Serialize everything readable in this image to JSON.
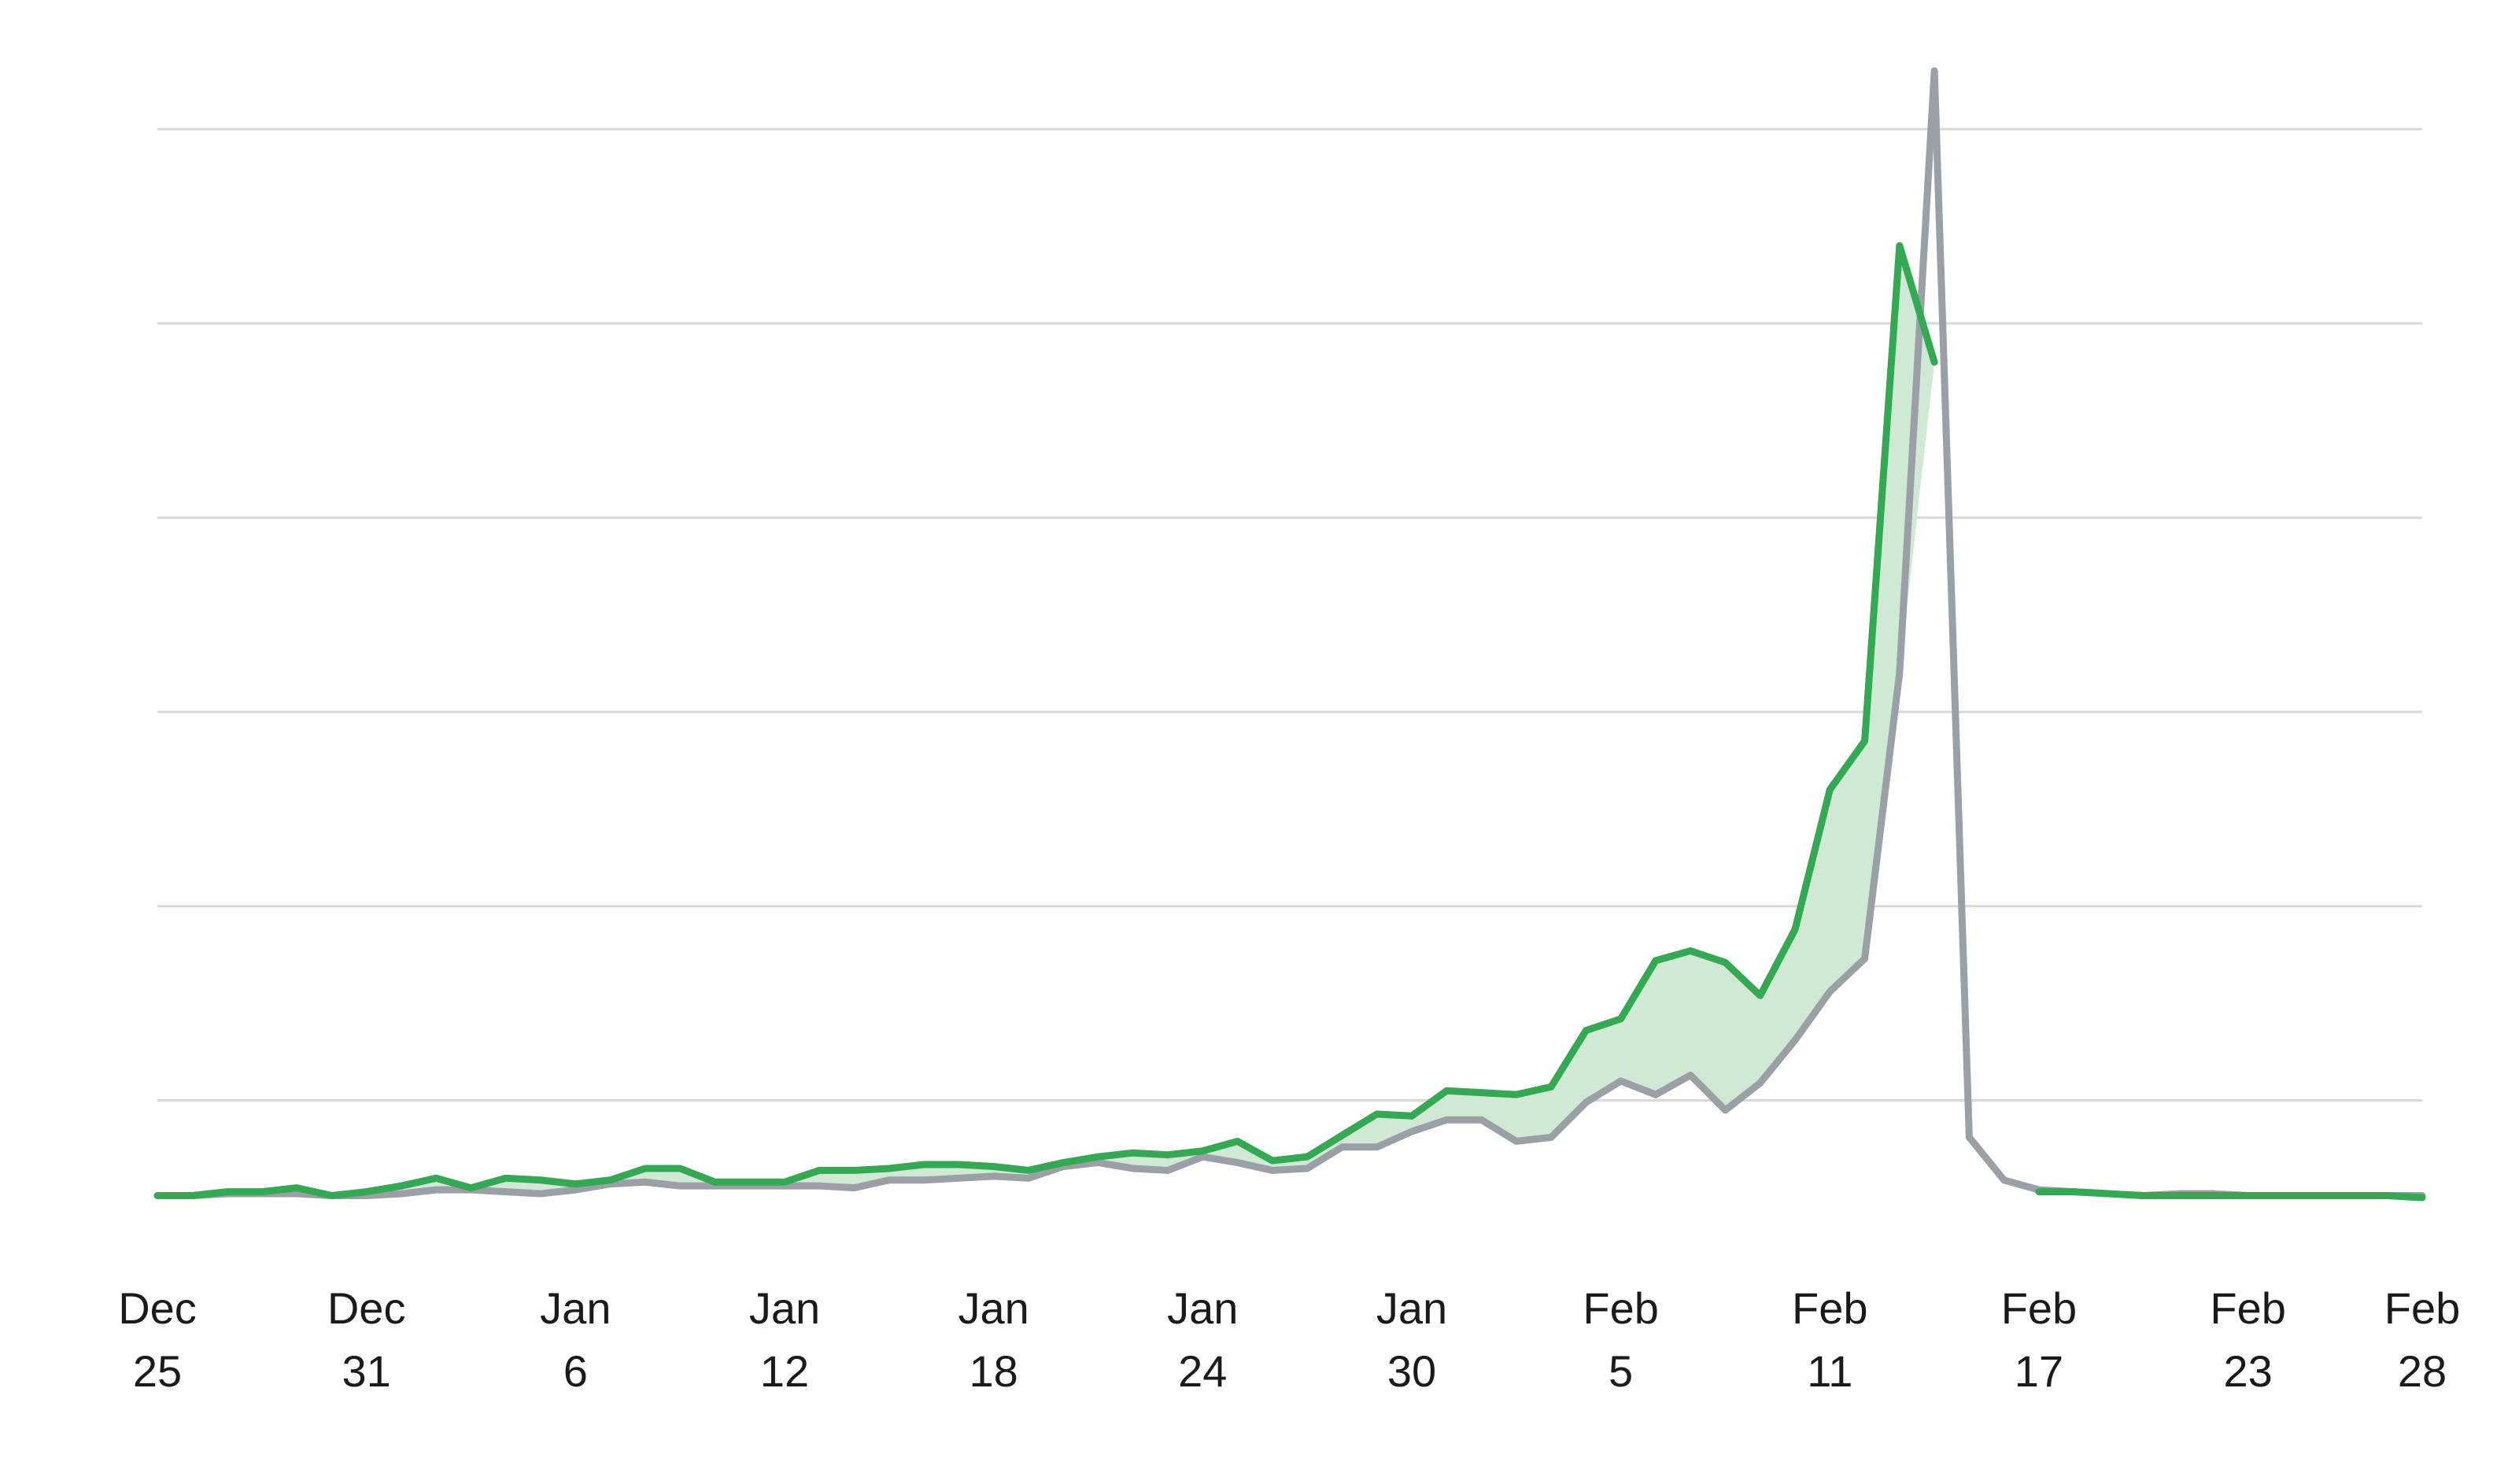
{
  "chart_data": {
    "type": "line",
    "title": "",
    "xlabel": "",
    "ylabel": "",
    "grid": true,
    "ylim": [
      0,
      58
    ],
    "y_gridlines": [
      5,
      15,
      25,
      35,
      45,
      55
    ],
    "x_ticks": [
      {
        "day": 0,
        "line1": "Dec",
        "line2": "25"
      },
      {
        "day": 6,
        "line1": "Dec",
        "line2": "31"
      },
      {
        "day": 12,
        "line1": "Jan",
        "line2": "6"
      },
      {
        "day": 18,
        "line1": "Jan",
        "line2": "12"
      },
      {
        "day": 24,
        "line1": "Jan",
        "line2": "18"
      },
      {
        "day": 30,
        "line1": "Jan",
        "line2": "24"
      },
      {
        "day": 36,
        "line1": "Jan",
        "line2": "30"
      },
      {
        "day": 42,
        "line1": "Feb",
        "line2": "5"
      },
      {
        "day": 48,
        "line1": "Feb",
        "line2": "11"
      },
      {
        "day": 54,
        "line1": "Feb",
        "line2": "17"
      },
      {
        "day": 60,
        "line1": "Feb",
        "line2": "23"
      },
      {
        "day": 65,
        "line1": "Feb",
        "line2": "28"
      }
    ],
    "series": [
      {
        "name": "green",
        "color": "#34a853",
        "x": [
          0,
          1,
          2,
          3,
          4,
          5,
          6,
          7,
          8,
          9,
          10,
          11,
          12,
          13,
          14,
          15,
          16,
          17,
          18,
          19,
          20,
          21,
          22,
          23,
          24,
          25,
          26,
          27,
          28,
          29,
          30,
          31,
          32,
          33,
          34,
          35,
          36,
          37,
          38,
          39,
          40,
          41,
          42,
          43,
          44,
          45,
          46,
          47,
          48,
          49,
          50,
          51,
          52,
          53,
          54,
          55,
          56,
          57,
          58,
          59,
          60,
          61,
          62,
          63,
          64,
          65
        ],
        "values": [
          0.1,
          0.1,
          0.3,
          0.3,
          0.5,
          0.1,
          0.3,
          0.6,
          1.0,
          0.5,
          1.0,
          0.9,
          0.7,
          0.9,
          1.5,
          1.5,
          0.8,
          0.8,
          0.8,
          1.4,
          1.4,
          1.5,
          1.7,
          1.7,
          1.6,
          1.4,
          1.8,
          2.1,
          2.3,
          2.2,
          2.4,
          2.9,
          1.9,
          2.1,
          3.2,
          4.3,
          4.2,
          5.5,
          5.4,
          5.3,
          5.7,
          8.6,
          9.2,
          12.2,
          12.7,
          12.1,
          10.4,
          13.8,
          21.0,
          23.5,
          49.0,
          43.0,
          null,
          null,
          0.3,
          0.3,
          0.2,
          0.1,
          0.1,
          0.1,
          0.1,
          0.1,
          0.1,
          0.1,
          0.1,
          0.0
        ]
      },
      {
        "name": "gray",
        "color": "#9aa0a6",
        "x": [
          0,
          1,
          2,
          3,
          4,
          5,
          6,
          7,
          8,
          9,
          10,
          11,
          12,
          13,
          14,
          15,
          16,
          17,
          18,
          19,
          20,
          21,
          22,
          23,
          24,
          25,
          26,
          27,
          28,
          29,
          30,
          31,
          32,
          33,
          34,
          35,
          36,
          37,
          38,
          39,
          40,
          41,
          42,
          43,
          44,
          45,
          46,
          47,
          48,
          49,
          50,
          51,
          52,
          53,
          54,
          55,
          56,
          57,
          58,
          59,
          60,
          61,
          62,
          63,
          64,
          65
        ],
        "values": [
          0.1,
          0.1,
          0.2,
          0.2,
          0.2,
          0.1,
          0.1,
          0.2,
          0.4,
          0.4,
          0.3,
          0.2,
          0.4,
          0.7,
          0.8,
          0.6,
          0.6,
          0.6,
          0.6,
          0.6,
          0.5,
          0.9,
          0.9,
          1.0,
          1.1,
          1.0,
          1.6,
          1.8,
          1.5,
          1.4,
          2.1,
          1.8,
          1.4,
          1.5,
          2.6,
          2.6,
          3.4,
          4.0,
          4.0,
          2.9,
          3.1,
          4.9,
          6.0,
          5.3,
          6.3,
          4.5,
          5.9,
          8.1,
          10.6,
          12.3,
          27.0,
          58.0,
          3.1,
          0.9,
          0.4,
          0.3,
          0.2,
          0.1,
          0.2,
          0.2,
          0.1,
          0.1,
          0.1,
          0.1,
          0.1,
          0.1
        ]
      }
    ]
  }
}
